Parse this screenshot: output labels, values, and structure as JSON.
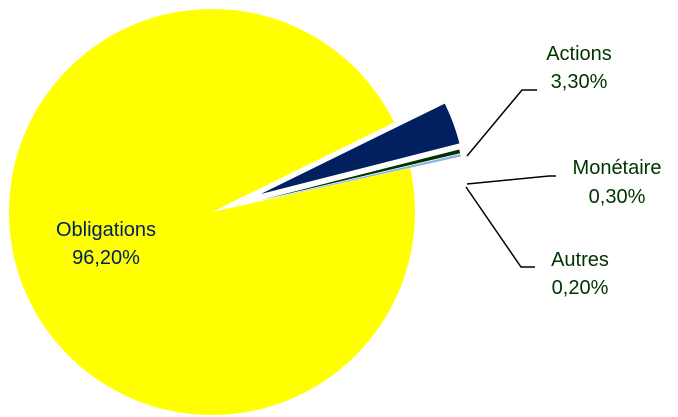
{
  "chart_data": {
    "type": "pie",
    "title": "",
    "slices": [
      {
        "label": "Obligations",
        "value": 96.2,
        "value_label": "96,20%",
        "color": "#FFFF00",
        "text_color": "#002060"
      },
      {
        "label": "Actions",
        "value": 3.3,
        "value_label": "3,30%",
        "color": "#002060",
        "text_color": "#003300"
      },
      {
        "label": "Monétaire",
        "value": 0.3,
        "value_label": "0,30%",
        "color": "#003300",
        "text_color": "#003300"
      },
      {
        "label": "Autres",
        "value": 0.2,
        "value_label": "0,20%",
        "color": "#8DB4E2",
        "text_color": "#003300"
      }
    ],
    "legend": "none"
  }
}
